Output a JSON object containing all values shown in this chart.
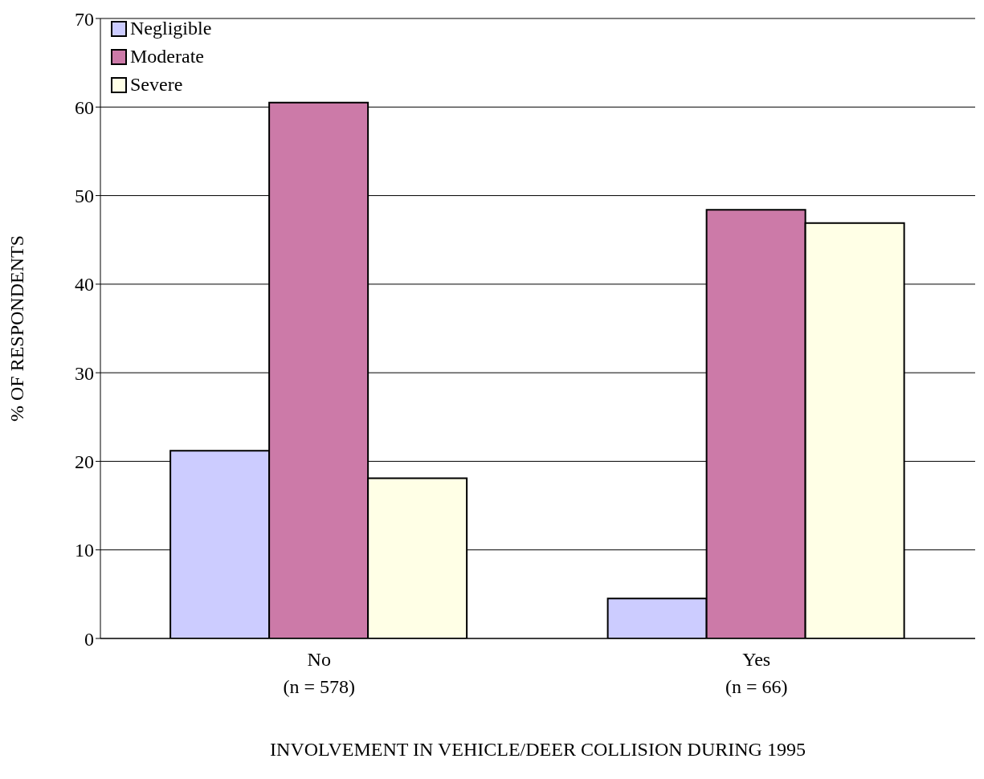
{
  "chart_data": {
    "type": "bar",
    "xlabel": "INVOLVEMENT IN VEHICLE/DEER COLLISION DURING 1995",
    "ylabel": "% OF RESPONDENTS",
    "categories": [
      "No\n(n = 578)",
      "Yes\n(n = 66)"
    ],
    "series": [
      {
        "name": "Negligible",
        "color": "#ccccff",
        "values": [
          21.2,
          4.5
        ]
      },
      {
        "name": "Moderate",
        "color": "#cc7aa8",
        "values": [
          60.5,
          48.4
        ]
      },
      {
        "name": "Severe",
        "color": "#ffffe6",
        "values": [
          18.1,
          46.9
        ]
      }
    ],
    "ylim": [
      0,
      70
    ],
    "yticks": [
      0,
      10,
      20,
      30,
      40,
      50,
      60,
      70
    ],
    "grid": "y",
    "legend": "top left"
  }
}
